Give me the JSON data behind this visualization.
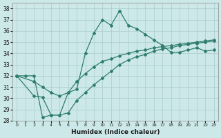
{
  "xlabel": "Humidex (Indice chaleur)",
  "xlim": [
    -0.5,
    23.5
  ],
  "ylim": [
    28,
    38.5
  ],
  "yticks": [
    28,
    29,
    30,
    31,
    32,
    33,
    34,
    35,
    36,
    37,
    38
  ],
  "xticks": [
    0,
    1,
    2,
    3,
    4,
    5,
    6,
    7,
    8,
    9,
    10,
    11,
    12,
    13,
    14,
    15,
    16,
    17,
    18,
    19,
    20,
    21,
    22,
    23
  ],
  "bg_color": "#cce8e8",
  "grid_color": "#aacccc",
  "line_color": "#2e7d6e",
  "line1_x": [
    0,
    1,
    2,
    3,
    4,
    5,
    6,
    7,
    8,
    9,
    10,
    11,
    12,
    13,
    14,
    15,
    16,
    17,
    18,
    19,
    20,
    21,
    22,
    23
  ],
  "line1_y": [
    32.0,
    32.0,
    32.0,
    28.3,
    28.5,
    28.5,
    30.5,
    30.8,
    34.0,
    35.8,
    37.0,
    36.5,
    37.8,
    36.5,
    36.2,
    35.7,
    35.2,
    34.7,
    34.1,
    34.1,
    34.3,
    34.5,
    34.2,
    34.3
  ],
  "line2_x": [
    0,
    2,
    3,
    4,
    5,
    6,
    7,
    8,
    9,
    10,
    11,
    12,
    13,
    14,
    15,
    16,
    17,
    18,
    19,
    20,
    21,
    22,
    23
  ],
  "line2_y": [
    32.0,
    31.5,
    31.0,
    30.5,
    30.2,
    30.5,
    31.5,
    32.2,
    32.8,
    33.3,
    33.5,
    33.8,
    34.0,
    34.2,
    34.3,
    34.5,
    34.6,
    34.7,
    34.8,
    34.9,
    35.0,
    35.1,
    35.2
  ],
  "line3_x": [
    0,
    2,
    3,
    4,
    5,
    6,
    7,
    8,
    9,
    10,
    11,
    12,
    13,
    14,
    15,
    16,
    17,
    18,
    19,
    20,
    21,
    22,
    23
  ],
  "line3_y": [
    32.0,
    30.2,
    30.1,
    28.5,
    28.5,
    28.7,
    29.8,
    30.5,
    31.2,
    31.8,
    32.4,
    33.0,
    33.4,
    33.7,
    33.9,
    34.2,
    34.4,
    34.5,
    34.7,
    34.8,
    34.9,
    35.0,
    35.1
  ]
}
